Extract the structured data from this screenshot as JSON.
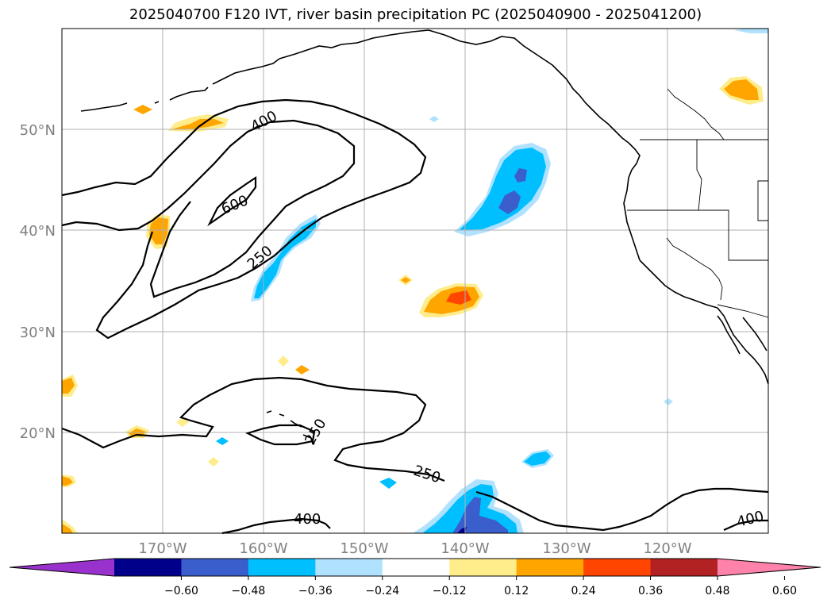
{
  "title": "2025040700 F120 IVT, river basin precipitation PC (2025040900 - 2025041200)",
  "latitudes": [
    {
      "label": "50°N",
      "value": 50
    },
    {
      "label": "40°N",
      "value": 40
    },
    {
      "label": "30°N",
      "value": 30
    },
    {
      "label": "20°N",
      "value": 20
    }
  ],
  "longitudes": [
    {
      "label": "170°W",
      "value": -170
    },
    {
      "label": "160°W",
      "value": -160
    },
    {
      "label": "150°W",
      "value": -150
    },
    {
      "label": "140°W",
      "value": -140
    },
    {
      "label": "130°W",
      "value": -130
    },
    {
      "label": "120°W",
      "value": -120
    }
  ],
  "contour_labels": [
    "400",
    "600",
    "250",
    "250",
    "250",
    "400",
    "400"
  ],
  "colorbar": {
    "ticks": [
      "−0.60",
      "−0.48",
      "−0.36",
      "−0.24",
      "−0.12",
      "0.12",
      "0.24",
      "0.36",
      "0.48",
      "0.60"
    ],
    "colors": [
      "#9932cc",
      "#00008b",
      "#3a5fcd",
      "#00bfff",
      "#b0e2ff",
      "#ffffff",
      "#ffec8b",
      "#ffa500",
      "#ff4500",
      "#b22222",
      "#ff82ab"
    ]
  }
}
